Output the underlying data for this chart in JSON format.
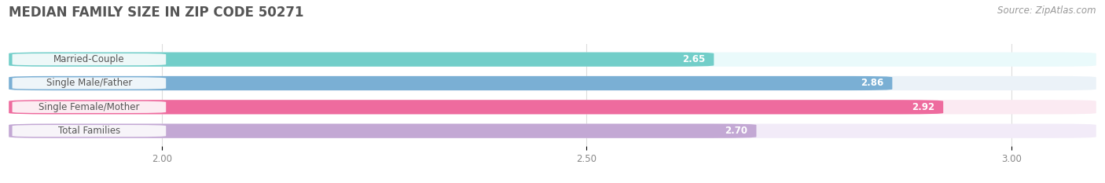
{
  "title": "MEDIAN FAMILY SIZE IN ZIP CODE 50271",
  "source": "Source: ZipAtlas.com",
  "categories": [
    "Married-Couple",
    "Single Male/Father",
    "Single Female/Mother",
    "Total Families"
  ],
  "values": [
    2.65,
    2.86,
    2.92,
    2.7
  ],
  "bar_colors": [
    "#72CEC9",
    "#7AAFD4",
    "#EE6B9E",
    "#C3A8D4"
  ],
  "bar_bg_colors": [
    "#EAFAFB",
    "#EBF2F8",
    "#FBEAF2",
    "#F2EBF8"
  ],
  "xlim": [
    1.82,
    3.1
  ],
  "xticks": [
    2.0,
    2.5,
    3.0
  ],
  "xtick_labels": [
    "2.00",
    "2.50",
    "3.00"
  ],
  "title_fontsize": 12,
  "label_fontsize": 8.5,
  "value_fontsize": 8.5,
  "source_fontsize": 8.5,
  "bg_color": "#FFFFFF",
  "bar_height": 0.6,
  "bar_gap": 1.0
}
